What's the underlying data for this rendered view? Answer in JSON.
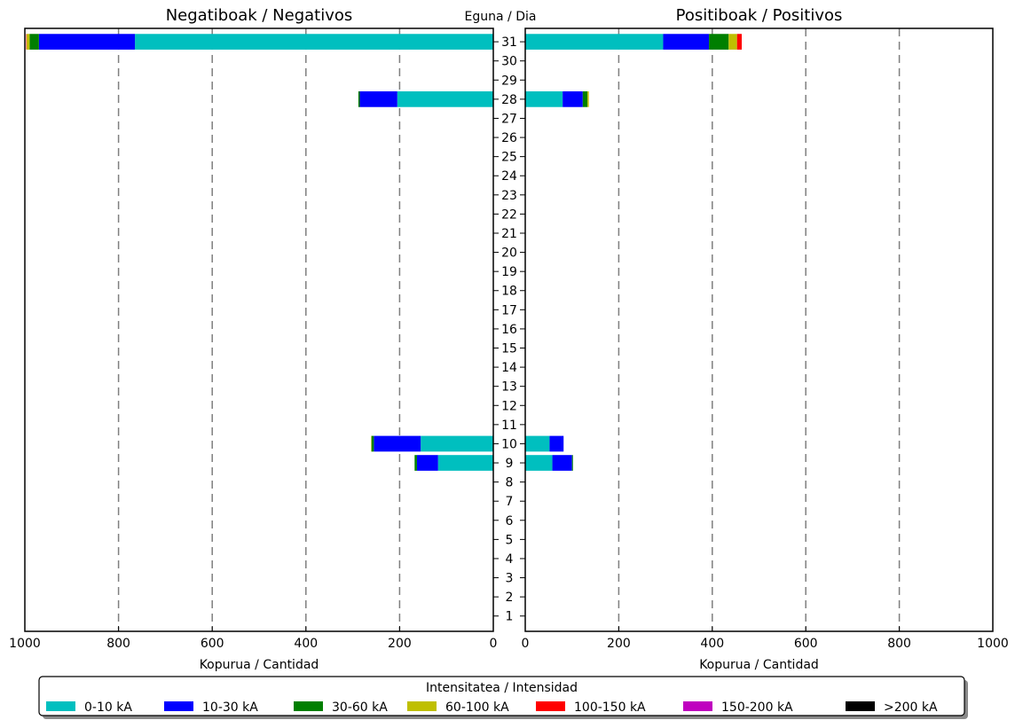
{
  "chart_data": {
    "type": "bar",
    "orientation": "horizontal-stacked",
    "day_axis_label": "Eguna / Dia",
    "days": [
      1,
      2,
      3,
      4,
      5,
      6,
      7,
      8,
      9,
      10,
      11,
      12,
      13,
      14,
      15,
      16,
      17,
      18,
      19,
      20,
      21,
      22,
      23,
      24,
      25,
      26,
      27,
      28,
      29,
      30,
      31
    ],
    "panels": [
      {
        "id": "negative",
        "title": "Negatiboak / Negativos",
        "xlabel": "Kopurua / Cantidad",
        "xlim": [
          1000,
          0
        ],
        "xticks": [
          1000,
          800,
          600,
          400,
          200,
          0
        ],
        "data": [
          {
            "day": 9,
            "values": [
              118,
              45,
              5,
              0,
              0,
              0,
              0
            ]
          },
          {
            "day": 10,
            "values": [
              155,
              100,
              5,
              1,
              0,
              0,
              0
            ]
          },
          {
            "day": 28,
            "values": [
              205,
              80,
              3,
              0,
              0,
              0,
              0
            ]
          },
          {
            "day": 31,
            "values": [
              765,
              205,
              20,
              6,
              1,
              0,
              0
            ]
          }
        ]
      },
      {
        "id": "positive",
        "title": "Positiboak / Positivos",
        "xlabel": "Kopurua / Cantidad",
        "xlim": [
          0,
          1000
        ],
        "xticks": [
          0,
          200,
          400,
          600,
          800,
          1000
        ],
        "data": [
          {
            "day": 9,
            "values": [
              58,
              42,
              2,
              0,
              0,
              0,
              0
            ]
          },
          {
            "day": 10,
            "values": [
              52,
              30,
              0,
              0,
              0,
              0,
              0
            ]
          },
          {
            "day": 28,
            "values": [
              80,
              43,
              10,
              3,
              0,
              0,
              0
            ]
          },
          {
            "day": 31,
            "values": [
              295,
              98,
              42,
              18,
              10,
              0,
              0
            ]
          }
        ]
      }
    ],
    "legend": {
      "title": "Intensitatea / Intensidad",
      "placement": "bottom",
      "entries": [
        {
          "label": "0-10 kA",
          "color": "#00bfbf"
        },
        {
          "label": "10-30 kA",
          "color": "#0000ff"
        },
        {
          "label": "30-60 kA",
          "color": "#007f00"
        },
        {
          "label": "60-100 kA",
          "color": "#bfbf00"
        },
        {
          "label": "100-150 kA",
          "color": "#ff0000"
        },
        {
          "label": "150-200 kA",
          "color": "#bf00bf"
        },
        {
          "label": ">200 kA",
          "color": "#000000"
        }
      ]
    },
    "grid": {
      "x": true,
      "style": "dashed",
      "color": "#7f7f7f"
    }
  }
}
